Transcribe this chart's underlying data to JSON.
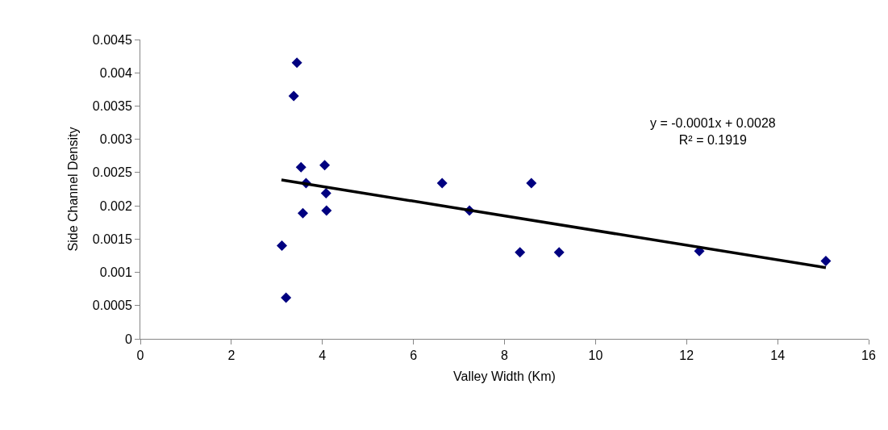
{
  "chart_data": {
    "type": "scatter",
    "xlabel": "Valley Width (Km)",
    "ylabel": "Side Channel Density",
    "series": [
      {
        "color": "#000080",
        "marker": "diamond",
        "x": [
          3.44,
          3.37,
          3.53,
          4.05,
          3.64,
          4.08,
          3.57,
          4.09,
          3.11,
          3.2,
          6.63,
          7.23,
          8.59,
          8.34,
          9.2,
          12.28,
          15.06
        ],
        "values": [
          0.00415,
          0.00365,
          0.00258,
          0.00261,
          0.00234,
          0.00219,
          0.00189,
          0.00193,
          0.0014,
          0.00062,
          0.00234,
          0.00193,
          0.00234,
          0.0013,
          0.0013,
          0.00132,
          0.00117
        ]
      },
      {
        "type": "line",
        "color": "#000000",
        "marker": "none",
        "line_style": "solid",
        "x": [
          3.1,
          15.06
        ],
        "values": [
          0.00239,
          0.00107
        ]
      }
    ],
    "annotations": [
      "y = -0.0001x + 0.0028\nR² = 0.1919"
    ],
    "xlim": [
      0,
      16
    ],
    "xticks": [
      0,
      2,
      4,
      6,
      8,
      10,
      12,
      14,
      16
    ],
    "ylim": [
      0,
      0.0045
    ],
    "yticks": [
      0,
      0.0005,
      0.001,
      0.0015,
      0.002,
      0.0025,
      0.003,
      0.0035,
      0.004,
      0.0045
    ],
    "grid": false
  }
}
